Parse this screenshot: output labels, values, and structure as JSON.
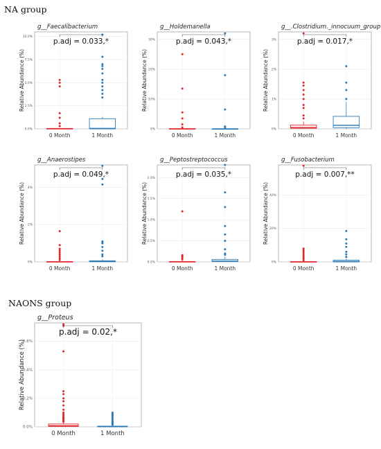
{
  "groups": {
    "na_title": "NA group",
    "naons_title": "NAONS group"
  },
  "colors": {
    "zero_month": "#e0282c",
    "one_month": "#2a7ab8"
  },
  "chart_data": [
    {
      "type": "box",
      "group": "NA group",
      "title": "g__Faecalibacterium",
      "ylabel": "Relative Abundance (%)",
      "categories": [
        "0 Month",
        "1 Month"
      ],
      "yticks": [
        "0.0%",
        "2.5%",
        "5.0%",
        "7.5%",
        "10.0%"
      ],
      "ylim": [
        0,
        10.5
      ],
      "annotation": "p.adj = 0.033,*",
      "boxes": [
        {
          "q1": 0,
          "median": 0,
          "q3": 0.05,
          "whisker_low": 0,
          "whisker_high": 0.1,
          "outliers": [
            0.3,
            0.6,
            1.2,
            1.7,
            4.6,
            5.0,
            5.3
          ]
        },
        {
          "q1": 0,
          "median": 0.05,
          "q3": 1.1,
          "whisker_low": 0,
          "whisker_high": 1.3,
          "outliers": [
            3.4,
            3.8,
            4.2,
            4.6,
            5.0,
            5.3,
            6.0,
            6.5,
            6.8,
            7.0,
            7.8,
            10.2
          ]
        }
      ]
    },
    {
      "type": "box",
      "group": "NA group",
      "title": "g__Holdemanella",
      "ylabel": "Relative Abundance (%)",
      "categories": [
        "0 Month",
        "1 Month"
      ],
      "yticks": [
        "0%",
        "10%",
        "20%",
        "30%"
      ],
      "ylim": [
        0,
        32.5
      ],
      "annotation": "p.adj = 0.043,*",
      "boxes": [
        {
          "q1": 0,
          "median": 0,
          "q3": 0.1,
          "whisker_low": 0,
          "whisker_high": 0.2,
          "outliers": [
            0.5,
            1.5,
            3.5,
            5.5,
            13.5,
            25.0
          ]
        },
        {
          "q1": 0,
          "median": 0,
          "q3": 0.05,
          "whisker_low": 0,
          "whisker_high": 0.1,
          "outliers": [
            0.4,
            0.8,
            6.5,
            18.0,
            32.0
          ]
        }
      ]
    },
    {
      "type": "box",
      "group": "NA group",
      "title": "g__.Clostridium._innocuum_group",
      "ylabel": "Relative Abundance (%)",
      "categories": [
        "0 Month",
        "1 Month"
      ],
      "yticks": [
        "0%",
        "1%",
        "2%",
        "3%"
      ],
      "ylim": [
        0,
        3.25
      ],
      "annotation": "p.adj = 0.017,*",
      "boxes": [
        {
          "q1": 0.02,
          "median": 0.05,
          "q3": 0.13,
          "whisker_low": 0,
          "whisker_high": 0.25,
          "outliers": [
            0.35,
            0.45,
            0.7,
            0.8,
            1.0,
            1.15,
            1.3,
            1.45,
            1.55,
            3.2
          ]
        },
        {
          "q1": 0.04,
          "median": 0.12,
          "q3": 0.42,
          "whisker_low": 0,
          "whisker_high": 0.9,
          "outliers": [
            1.0,
            1.3,
            1.55,
            2.1
          ]
        }
      ]
    },
    {
      "type": "box",
      "group": "NA group",
      "title": "g__Anaerostipes",
      "ylabel": "Relative Abundance (%)",
      "categories": [
        "0 Month",
        "1 Month"
      ],
      "yticks": [
        "0%",
        "2%",
        "4%"
      ],
      "ylim": [
        0,
        5.2
      ],
      "annotation": "p.adj = 0.049,*",
      "boxes": [
        {
          "q1": 0,
          "median": 0,
          "q3": 0.02,
          "whisker_low": 0,
          "whisker_high": 0.05,
          "outliers": [
            0.1,
            0.2,
            0.3,
            0.4,
            0.5,
            0.6,
            0.7,
            0.9,
            1.65
          ]
        },
        {
          "q1": 0.01,
          "median": 0.03,
          "q3": 0.06,
          "whisker_low": 0,
          "whisker_high": 0.12,
          "outliers": [
            0.3,
            0.4,
            0.6,
            0.8,
            1.0,
            1.05,
            1.1,
            4.15,
            4.45,
            5.15
          ]
        }
      ]
    },
    {
      "type": "box",
      "group": "NA group",
      "title": "g__Peptostreptococcus",
      "ylabel": "Relative Abundance (%)",
      "categories": [
        "0 Month",
        "1 Month"
      ],
      "yticks": [
        "0.0%",
        "0.5%",
        "1.0%",
        "1.5%",
        "2.0%"
      ],
      "ylim": [
        0,
        2.3
      ],
      "annotation": "p.adj = 0.035,*",
      "boxes": [
        {
          "q1": 0,
          "median": 0,
          "q3": 0.01,
          "whisker_low": 0,
          "whisker_high": 0.03,
          "outliers": [
            0.06,
            0.09,
            0.12,
            0.14,
            0.16,
            1.2
          ]
        },
        {
          "q1": 0.01,
          "median": 0.02,
          "q3": 0.06,
          "whisker_low": 0,
          "whisker_high": 0.13,
          "outliers": [
            0.17,
            0.2,
            0.3,
            0.5,
            0.65,
            0.85,
            1.3,
            1.65,
            2.3
          ]
        }
      ]
    },
    {
      "type": "box",
      "group": "NA group",
      "title": "g__Fusobacterium",
      "ylabel": "Relative Abundance (%)",
      "categories": [
        "0 Month",
        "1 Month"
      ],
      "yticks": [
        "0%",
        "20%",
        "40%"
      ],
      "ylim": [
        0,
        58
      ],
      "annotation": "p.adj = 0.007,**",
      "boxes": [
        {
          "q1": 0,
          "median": 0,
          "q3": 0.2,
          "whisker_low": 0,
          "whisker_high": 0.5,
          "outliers": [
            1.0,
            2.0,
            3.0,
            4.0,
            5.0,
            6.0,
            7.0,
            8.0,
            57.5
          ]
        },
        {
          "q1": 0,
          "median": 0.3,
          "q3": 1.0,
          "whisker_low": 0,
          "whisker_high": 2.0,
          "outliers": [
            3.0,
            4.5,
            6.0,
            9.0,
            11.0,
            13.5,
            18.5
          ]
        }
      ]
    },
    {
      "type": "box",
      "group": "NAONS group",
      "title": "g__Proteus",
      "ylabel": "Relative Abundance (%)",
      "categories": [
        "0 Month",
        "1 Month"
      ],
      "yticks": [
        "0.0%",
        "0.2%",
        "0.4%",
        "0.6%"
      ],
      "ylim": [
        0,
        0.73
      ],
      "annotation": "p.adj = 0.02,*",
      "boxes": [
        {
          "q1": 0.003,
          "median": 0.008,
          "q3": 0.02,
          "whisker_low": 0,
          "whisker_high": 0.03,
          "outliers": [
            0.035,
            0.04,
            0.045,
            0.05,
            0.055,
            0.06,
            0.065,
            0.07,
            0.08,
            0.09,
            0.1,
            0.12,
            0.15,
            0.18,
            0.2,
            0.23,
            0.25,
            0.53,
            0.71,
            0.72
          ]
        },
        {
          "q1": 0,
          "median": 0.002,
          "q3": 0.005,
          "whisker_low": 0,
          "whisker_high": 0.01,
          "outliers": [
            0.015,
            0.02,
            0.025,
            0.03,
            0.035,
            0.04,
            0.05,
            0.06,
            0.07,
            0.08,
            0.09,
            0.1
          ]
        }
      ]
    }
  ]
}
